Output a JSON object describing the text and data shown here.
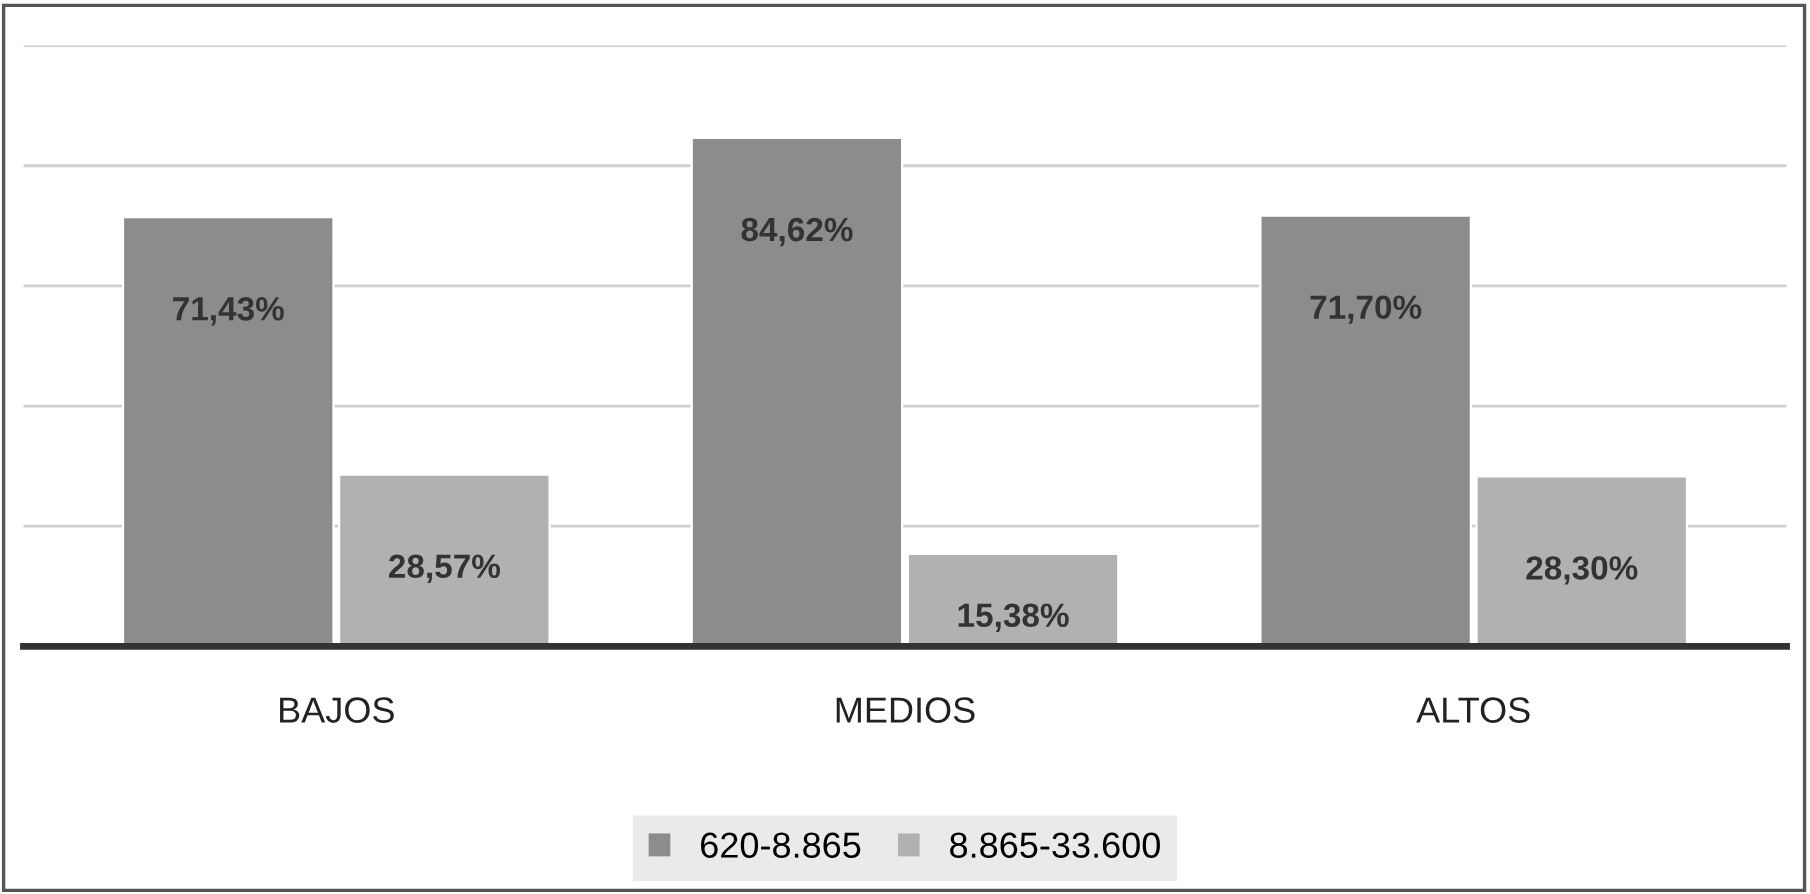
{
  "chart_data": {
    "type": "bar",
    "categories": [
      "BAJOS",
      "MEDIOS",
      "ALTOS"
    ],
    "series": [
      {
        "name": "620-8.865",
        "color": "#8c8c8c",
        "values": [
          71.43,
          84.62,
          71.7
        ],
        "value_labels": [
          "71,43%",
          "84,62%",
          "71,70%"
        ]
      },
      {
        "name": "8.865-33.600",
        "color": "#b1b1b1",
        "values": [
          28.57,
          15.38,
          28.3
        ],
        "value_labels": [
          "28,57%",
          "15,38%",
          "28,30%"
        ]
      }
    ],
    "ylim": [
      0,
      100
    ],
    "yticks": [
      {
        "value": 0,
        "label": null
      },
      {
        "value": 20,
        "label": null
      },
      {
        "value": 40,
        "label": null
      },
      {
        "value": 60,
        "label": null
      },
      {
        "value": 80,
        "label": null
      },
      {
        "value": 100,
        "label": null
      }
    ],
    "grid": "y",
    "legend": "bottom",
    "tick_labels": "x"
  }
}
